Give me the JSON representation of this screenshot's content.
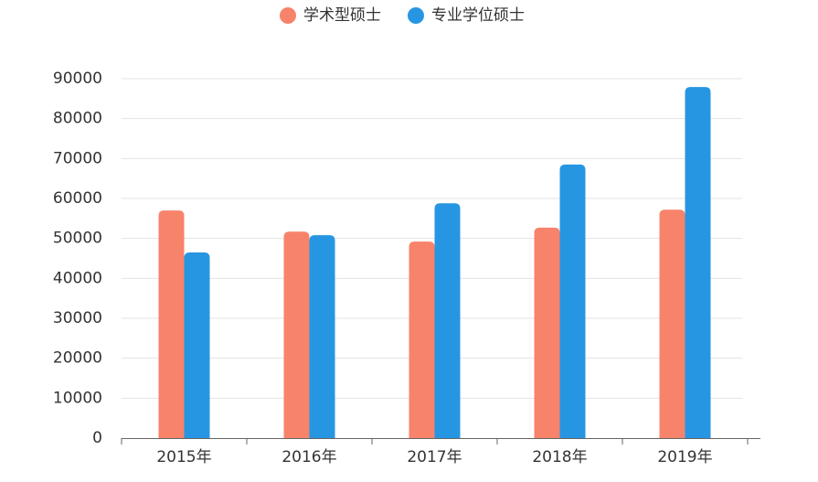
{
  "chart_data": {
    "type": "bar",
    "categories": [
      "2015年",
      "2016年",
      "2017年",
      "2018年",
      "2019年"
    ],
    "series": [
      {
        "name": "学术型硕士",
        "color": "#f7836b",
        "values": [
          57000,
          51700,
          49200,
          52700,
          57200
        ]
      },
      {
        "name": "专业学位硕士",
        "color": "#2796e2",
        "values": [
          46500,
          50800,
          58800,
          68500,
          87900
        ]
      }
    ],
    "ylim": [
      0,
      90000
    ],
    "yticks": [
      0,
      10000,
      20000,
      30000,
      40000,
      50000,
      60000,
      70000,
      80000,
      90000
    ],
    "grid": true,
    "legend": "top"
  }
}
